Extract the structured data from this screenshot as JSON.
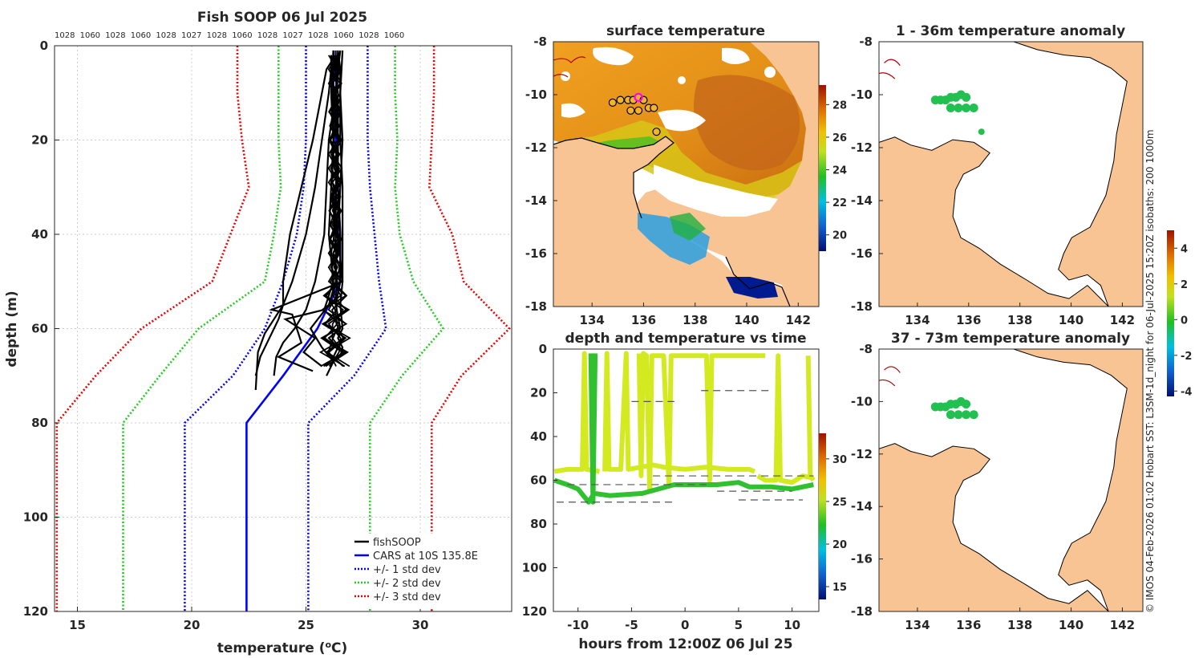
{
  "chart_data": [
    {
      "type": "line",
      "panel": "profile",
      "title": "Fish SOOP 06 Jul 2025",
      "xlabel": "temperature (",
      "xlabel_sup": "o",
      "xlabel_unit": "C)",
      "ylabel": "depth (m)",
      "xlim": [
        14,
        34
      ],
      "ylim": [
        0,
        120
      ],
      "y_reversed": true,
      "xticks": [
        15,
        20,
        25,
        30
      ],
      "yticks": [
        0,
        20,
        40,
        60,
        80,
        100,
        120
      ],
      "top_labels": [
        "1028",
        "1060",
        "1028",
        "1060",
        "1028",
        "1027",
        "1028",
        "1060",
        "1028",
        "1027",
        "1028",
        "1060",
        "1028",
        "1060"
      ],
      "legend": [
        "fishSOOP",
        "CARS at 10S 135.8E",
        "+/- 1 std dev",
        "+/- 2 std dev",
        "+/- 3 std dev"
      ],
      "series": [
        {
          "name": "CARS mean",
          "color": "#0000ff",
          "style": "solid",
          "depth": [
            1,
            10,
            20,
            30,
            40,
            50,
            60,
            70,
            80,
            120
          ],
          "temp": [
            26.2,
            26.2,
            26.3,
            26.4,
            26.5,
            26.5,
            25.5,
            24.0,
            22.4,
            22.4
          ]
        },
        {
          "name": "+1 std",
          "color": "#0000ff",
          "style": "dotted",
          "depth": [
            0,
            10,
            20,
            30,
            40,
            50,
            60,
            70,
            80,
            120
          ],
          "temp": [
            27.7,
            27.7,
            27.7,
            27.8,
            28.0,
            28.2,
            28.5,
            27.1,
            25.1,
            25.1
          ]
        },
        {
          "name": "-1 std",
          "color": "#0000ff",
          "style": "dotted",
          "depth": [
            0,
            10,
            20,
            30,
            40,
            50,
            60,
            70,
            80,
            120
          ],
          "temp": [
            25.0,
            25.0,
            25.0,
            24.9,
            24.6,
            24.0,
            23.2,
            21.8,
            19.7,
            19.7
          ]
        },
        {
          "name": "+2 std",
          "color": "#22cc22",
          "style": "dotted",
          "depth": [
            0,
            10,
            20,
            30,
            40,
            50,
            60,
            70,
            80,
            120
          ],
          "temp": [
            28.9,
            28.9,
            29.0,
            28.9,
            29.1,
            29.7,
            31.0,
            29.2,
            27.8,
            27.8
          ]
        },
        {
          "name": "-2 std",
          "color": "#22cc22",
          "style": "dotted",
          "depth": [
            0,
            10,
            20,
            30,
            40,
            50,
            60,
            70,
            80,
            120
          ],
          "temp": [
            23.8,
            23.8,
            23.8,
            23.9,
            23.6,
            23.2,
            20.3,
            18.6,
            17.0,
            17.0
          ]
        },
        {
          "name": "+3 std",
          "color": "#ee0000",
          "style": "dotted",
          "depth": [
            0,
            10,
            20,
            30,
            40,
            50,
            60,
            70,
            80,
            120
          ],
          "temp": [
            30.6,
            30.6,
            30.5,
            30.4,
            31.4,
            31.9,
            33.9,
            31.8,
            30.5,
            30.5
          ]
        },
        {
          "name": "-3 std",
          "color": "#ee0000",
          "style": "dotted",
          "depth": [
            0,
            10,
            20,
            30,
            40,
            50,
            60,
            70,
            80,
            120
          ],
          "temp": [
            22.0,
            22.0,
            22.2,
            22.5,
            21.7,
            20.9,
            17.8,
            15.8,
            14.1,
            14.1
          ]
        }
      ],
      "profiles": [
        {
          "depth": [
            1,
            5,
            10,
            20,
            30,
            40,
            50,
            55,
            60,
            62,
            64,
            66
          ],
          "temp": [
            26.4,
            26.5,
            26.5,
            26.5,
            26.6,
            26.6,
            26.6,
            26.5,
            26.6,
            26.4,
            26.6,
            26.5
          ]
        },
        {
          "depth": [
            1,
            5,
            10,
            20,
            30,
            40,
            50,
            55,
            60,
            62,
            64,
            66
          ],
          "temp": [
            26.3,
            26.3,
            26.4,
            26.4,
            26.4,
            26.5,
            26.5,
            26.3,
            26.5,
            26.0,
            26.4,
            26.2
          ]
        },
        {
          "depth": [
            2,
            5,
            10,
            20,
            30,
            40,
            50,
            55,
            58,
            62,
            66,
            70
          ],
          "temp": [
            26.1,
            26.1,
            26.0,
            25.7,
            25.4,
            25.0,
            24.4,
            24.0,
            23.8,
            23.4,
            23.0,
            22.8
          ]
        },
        {
          "depth": [
            2,
            5,
            10,
            20,
            30,
            40,
            50,
            55,
            58,
            61,
            65,
            73
          ],
          "temp": [
            26.3,
            25.9,
            25.7,
            25.3,
            24.8,
            24.3,
            24.0,
            24.0,
            23.6,
            23.2,
            22.9,
            22.8
          ]
        },
        {
          "depth": [
            1,
            5,
            10,
            20,
            30,
            40,
            50,
            56,
            60,
            63,
            66,
            70
          ],
          "temp": [
            26.5,
            26.4,
            26.3,
            26.0,
            25.9,
            25.8,
            25.4,
            25.0,
            24.5,
            24.0,
            23.7,
            23.6
          ]
        },
        {
          "depth": [
            1,
            10,
            20,
            30,
            40,
            50,
            56,
            58,
            62,
            65,
            68
          ],
          "temp": [
            26.2,
            26.1,
            26.2,
            26.1,
            26.0,
            26.2,
            25.8,
            24.1,
            25.4,
            24.9,
            25.7
          ]
        },
        {
          "depth": [
            1,
            10,
            20,
            30,
            40,
            50,
            55,
            60,
            64,
            67,
            70
          ],
          "temp": [
            26.4,
            26.3,
            26.4,
            26.3,
            26.3,
            26.3,
            26.0,
            25.2,
            25.7,
            26.2,
            25.9
          ]
        },
        {
          "depth": [
            1,
            10,
            20,
            30,
            40,
            50,
            56,
            57,
            63,
            66,
            69
          ],
          "temp": [
            26.6,
            26.5,
            26.6,
            26.5,
            26.4,
            26.6,
            23.5,
            24.4,
            24.8,
            23.8,
            25.3
          ]
        }
      ]
    },
    {
      "type": "heatmap",
      "panel": "surface",
      "title": "surface temperature",
      "xticks": [
        134,
        136,
        138,
        140,
        142
      ],
      "yticks": [
        -8,
        -10,
        -12,
        -14,
        -16,
        -18
      ],
      "colorbar_ticks": [
        20,
        22,
        24,
        26,
        28
      ],
      "lon": [
        134.8,
        135.1,
        135.4,
        135.6,
        135.8,
        136.0,
        136.2,
        136.4,
        135.5,
        135.8,
        136.5,
        135.8
      ],
      "lat": [
        -10.3,
        -10.2,
        -10.2,
        -10.2,
        -10.1,
        -10.2,
        -10.5,
        -10.5,
        -10.6,
        -10.6,
        -11.4,
        -10.1
      ]
    },
    {
      "type": "scatter",
      "panel": "time",
      "title": "depth and temperature vs time",
      "xlabel": "hours from 12:00Z 06 Jul 25",
      "xlim": [
        -12.3,
        12.5
      ],
      "ylim": [
        0,
        120
      ],
      "xticks": [
        -10,
        -5,
        0,
        5,
        10
      ],
      "yticks": [
        0,
        20,
        40,
        60,
        80,
        100,
        120
      ],
      "colorbar_ticks": [
        15,
        20,
        25,
        30
      ]
    },
    {
      "type": "heatmap",
      "panel": "anomaly_shallow",
      "title": "1 - 36m temperature anomaly",
      "xticks": [
        134,
        136,
        138,
        140,
        142
      ],
      "yticks": [
        -8,
        -10,
        -12,
        -14,
        -16,
        -18
      ],
      "colorbar_ticks": [
        -4,
        -2,
        0,
        2,
        4
      ],
      "lon": [
        134.7,
        134.9,
        135.1,
        135.3,
        135.5,
        135.7,
        135.9,
        135.3,
        135.6,
        135.9,
        136.2,
        136.5
      ],
      "lat": [
        -10.2,
        -10.2,
        -10.2,
        -10.1,
        -10.1,
        -10.0,
        -10.1,
        -10.5,
        -10.5,
        -10.5,
        -10.5,
        -11.4
      ]
    },
    {
      "type": "heatmap",
      "panel": "anomaly_deep",
      "title": "37 - 73m temperature anomaly",
      "xticks": [
        134,
        136,
        138,
        140,
        142
      ],
      "yticks": [
        -8,
        -10,
        -12,
        -14,
        -16,
        -18
      ],
      "lon": [
        134.7,
        134.9,
        135.1,
        135.3,
        135.5,
        135.7,
        135.9,
        135.3,
        135.6,
        135.9,
        136.2
      ],
      "lat": [
        -10.2,
        -10.2,
        -10.2,
        -10.1,
        -10.1,
        -10.0,
        -10.1,
        -10.5,
        -10.5,
        -10.5,
        -10.5
      ]
    }
  ],
  "side_text": "© IMOS 04-Feb-2026 01:02 Hobart SST: L3SM-1d_night for 06-Jul-2025 15:20Z isobaths: 200  1000m"
}
